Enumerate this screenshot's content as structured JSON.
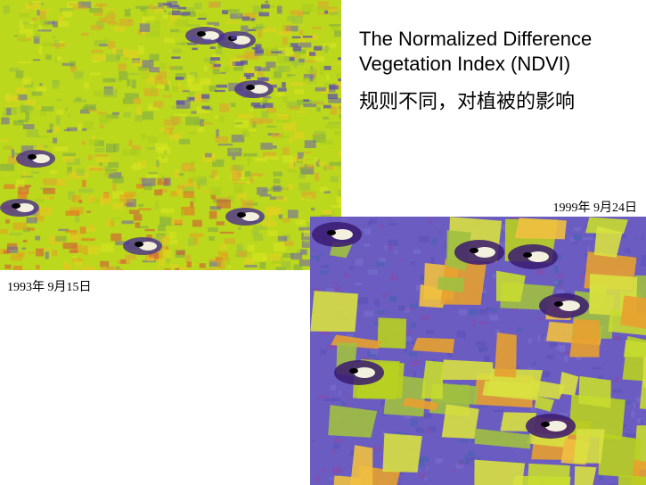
{
  "title": {
    "lines": [
      "The Normalized Difference",
      "Vegetation Index (NDVI)"
    ]
  },
  "subtitle": "规则不同，对植被的影响",
  "images": [
    {
      "date": "1993年 9月15日"
    },
    {
      "date": "1999年 9月24日"
    }
  ]
}
